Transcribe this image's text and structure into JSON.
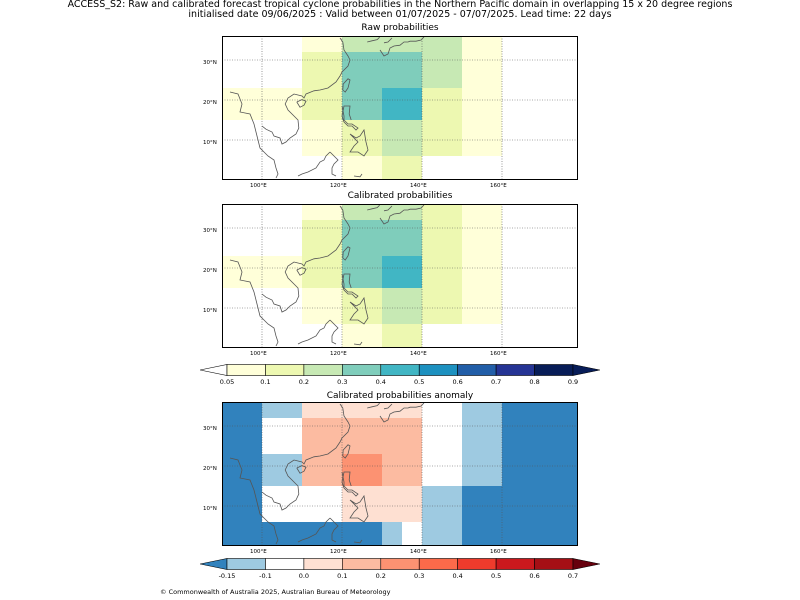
{
  "header": {
    "line1": "ACCESS_S2: Raw and calibrated forecast tropical cyclone probabilities in the Northern Pacific domain in overlapping 15 x 20 degree regions",
    "line2": "initialised date 09/06/2025 :  Valid between 01/07/2025 - 07/07/2025. Lead time: 22 days"
  },
  "axes": {
    "lat_labels": [
      "30°N",
      "20°N",
      "10°N"
    ],
    "lon_labels": [
      "100°E",
      "120°E",
      "140°E",
      "160°E"
    ]
  },
  "panels": [
    {
      "title": "Raw probabilities",
      "cells": [
        {
          "lon": [
            110,
            120
          ],
          "lat": [
            32,
            36
          ],
          "color": "#ffffd9"
        },
        {
          "lon": [
            120,
            140
          ],
          "lat": [
            32,
            36
          ],
          "color": "#c7e9b4"
        },
        {
          "lon": [
            140,
            150
          ],
          "lat": [
            32,
            36
          ],
          "color": "#c7e9b4"
        },
        {
          "lon": [
            150,
            160
          ],
          "lat": [
            32,
            36
          ],
          "color": "#ffffd9"
        },
        {
          "lon": [
            110,
            120
          ],
          "lat": [
            23,
            32
          ],
          "color": "#edf8b1"
        },
        {
          "lon": [
            120,
            140
          ],
          "lat": [
            23,
            32
          ],
          "color": "#7fcdbb"
        },
        {
          "lon": [
            140,
            150
          ],
          "lat": [
            23,
            32
          ],
          "color": "#c7e9b4"
        },
        {
          "lon": [
            150,
            160
          ],
          "lat": [
            23,
            32
          ],
          "color": "#ffffd9"
        },
        {
          "lon": [
            90,
            110
          ],
          "lat": [
            15,
            23
          ],
          "color": "#ffffd9"
        },
        {
          "lon": [
            110,
            120
          ],
          "lat": [
            15,
            23
          ],
          "color": "#edf8b1"
        },
        {
          "lon": [
            120,
            130
          ],
          "lat": [
            15,
            23
          ],
          "color": "#7fcdbb"
        },
        {
          "lon": [
            130,
            140
          ],
          "lat": [
            15,
            23
          ],
          "color": "#41b6c4"
        },
        {
          "lon": [
            140,
            150
          ],
          "lat": [
            15,
            23
          ],
          "color": "#edf8b1"
        },
        {
          "lon": [
            150,
            160
          ],
          "lat": [
            15,
            23
          ],
          "color": "#ffffd9"
        },
        {
          "lon": [
            110,
            120
          ],
          "lat": [
            6,
            15
          ],
          "color": "#ffffd9"
        },
        {
          "lon": [
            120,
            130
          ],
          "lat": [
            6,
            15
          ],
          "color": "#edf8b1"
        },
        {
          "lon": [
            130,
            140
          ],
          "lat": [
            6,
            15
          ],
          "color": "#c7e9b4"
        },
        {
          "lon": [
            140,
            150
          ],
          "lat": [
            6,
            15
          ],
          "color": "#edf8b1"
        },
        {
          "lon": [
            150,
            160
          ],
          "lat": [
            6,
            15
          ],
          "color": "#ffffd9"
        },
        {
          "lon": [
            120,
            130
          ],
          "lat": [
            0,
            6
          ],
          "color": "#ffffd9"
        },
        {
          "lon": [
            130,
            140
          ],
          "lat": [
            0,
            6
          ],
          "color": "#edf8b1"
        }
      ]
    },
    {
      "title": "Calibrated probabilities",
      "cells": [
        {
          "lon": [
            110,
            120
          ],
          "lat": [
            32,
            36
          ],
          "color": "#ffffd9"
        },
        {
          "lon": [
            120,
            140
          ],
          "lat": [
            32,
            36
          ],
          "color": "#c7e9b4"
        },
        {
          "lon": [
            140,
            150
          ],
          "lat": [
            32,
            36
          ],
          "color": "#edf8b1"
        },
        {
          "lon": [
            150,
            160
          ],
          "lat": [
            32,
            36
          ],
          "color": "#ffffd9"
        },
        {
          "lon": [
            110,
            120
          ],
          "lat": [
            23,
            32
          ],
          "color": "#edf8b1"
        },
        {
          "lon": [
            120,
            140
          ],
          "lat": [
            23,
            32
          ],
          "color": "#7fcdbb"
        },
        {
          "lon": [
            140,
            150
          ],
          "lat": [
            23,
            32
          ],
          "color": "#edf8b1"
        },
        {
          "lon": [
            150,
            160
          ],
          "lat": [
            23,
            32
          ],
          "color": "#ffffd9"
        },
        {
          "lon": [
            90,
            110
          ],
          "lat": [
            15,
            23
          ],
          "color": "#ffffd9"
        },
        {
          "lon": [
            110,
            120
          ],
          "lat": [
            15,
            23
          ],
          "color": "#edf8b1"
        },
        {
          "lon": [
            120,
            130
          ],
          "lat": [
            15,
            23
          ],
          "color": "#7fcdbb"
        },
        {
          "lon": [
            130,
            140
          ],
          "lat": [
            15,
            23
          ],
          "color": "#41b6c4"
        },
        {
          "lon": [
            140,
            150
          ],
          "lat": [
            15,
            23
          ],
          "color": "#edf8b1"
        },
        {
          "lon": [
            150,
            160
          ],
          "lat": [
            15,
            23
          ],
          "color": "#ffffd9"
        },
        {
          "lon": [
            110,
            120
          ],
          "lat": [
            6,
            15
          ],
          "color": "#ffffd9"
        },
        {
          "lon": [
            120,
            130
          ],
          "lat": [
            6,
            15
          ],
          "color": "#edf8b1"
        },
        {
          "lon": [
            130,
            140
          ],
          "lat": [
            6,
            15
          ],
          "color": "#c7e9b4"
        },
        {
          "lon": [
            140,
            150
          ],
          "lat": [
            6,
            15
          ],
          "color": "#edf8b1"
        },
        {
          "lon": [
            150,
            160
          ],
          "lat": [
            6,
            15
          ],
          "color": "#ffffd9"
        },
        {
          "lon": [
            120,
            130
          ],
          "lat": [
            0,
            6
          ],
          "color": "#ffffd9"
        },
        {
          "lon": [
            130,
            140
          ],
          "lat": [
            0,
            6
          ],
          "color": "#edf8b1"
        }
      ]
    },
    {
      "title": "Calibrated probabilities anomaly",
      "cells": [
        {
          "lon": [
            90,
            100
          ],
          "lat": [
            0,
            36
          ],
          "color": "#3182bd"
        },
        {
          "lon": [
            100,
            110
          ],
          "lat": [
            32,
            36
          ],
          "color": "#9ecae1"
        },
        {
          "lon": [
            100,
            110
          ],
          "lat": [
            15,
            23
          ],
          "color": "#9ecae1"
        },
        {
          "lon": [
            100,
            110
          ],
          "lat": [
            0,
            6
          ],
          "color": "#3182bd"
        },
        {
          "lon": [
            110,
            120
          ],
          "lat": [
            32,
            36
          ],
          "color": "#fee0d2"
        },
        {
          "lon": [
            120,
            140
          ],
          "lat": [
            32,
            36
          ],
          "color": "#fee0d2"
        },
        {
          "lon": [
            110,
            140
          ],
          "lat": [
            15,
            32
          ],
          "color": "#fcbba1"
        },
        {
          "lon": [
            120,
            130
          ],
          "lat": [
            15,
            23
          ],
          "color": "#fc9272"
        },
        {
          "lon": [
            120,
            140
          ],
          "lat": [
            6,
            15
          ],
          "color": "#fee0d2"
        },
        {
          "lon": [
            110,
            120
          ],
          "lat": [
            0,
            6
          ],
          "color": "#3182bd"
        },
        {
          "lon": [
            120,
            130
          ],
          "lat": [
            0,
            6
          ],
          "color": "#3182bd"
        },
        {
          "lon": [
            130,
            135
          ],
          "lat": [
            0,
            6
          ],
          "color": "#9ecae1"
        },
        {
          "lon": [
            140,
            150
          ],
          "lat": [
            0,
            15
          ],
          "color": "#9ecae1"
        },
        {
          "lon": [
            150,
            160
          ],
          "lat": [
            15,
            36
          ],
          "color": "#9ecae1"
        },
        {
          "lon": [
            150,
            160
          ],
          "lat": [
            0,
            15
          ],
          "color": "#3182bd"
        },
        {
          "lon": [
            160,
            180
          ],
          "lat": [
            0,
            36
          ],
          "color": "#3182bd"
        }
      ]
    }
  ],
  "colorbar1": {
    "labels": [
      "0.05",
      "0.1",
      "0.2",
      "0.3",
      "0.4",
      "0.5",
      "0.6",
      "0.7",
      "0.8",
      "0.9"
    ],
    "under_color": "#ffffff",
    "over_color": "#081d58",
    "colors": [
      "#ffffd9",
      "#edf8b1",
      "#c7e9b4",
      "#7fcdbb",
      "#41b6c4",
      "#1d91c0",
      "#225ea8",
      "#253494",
      "#081d58"
    ]
  },
  "colorbar2": {
    "labels": [
      "-0.15",
      "-0.1",
      "0.0",
      "0.1",
      "0.2",
      "0.3",
      "0.4",
      "0.5",
      "0.6",
      "0.7"
    ],
    "under_color": "#3182bd",
    "over_color": "#67000d",
    "colors": [
      "#9ecae1",
      "#ffffff",
      "#fee0d2",
      "#fcbba1",
      "#fc9272",
      "#fb6a4a",
      "#ef3b2c",
      "#cb181d",
      "#a50f15"
    ]
  },
  "footer": {
    "copyright": "© Commonwealth of Australia 2025, Australian Bureau of Meteorology"
  }
}
